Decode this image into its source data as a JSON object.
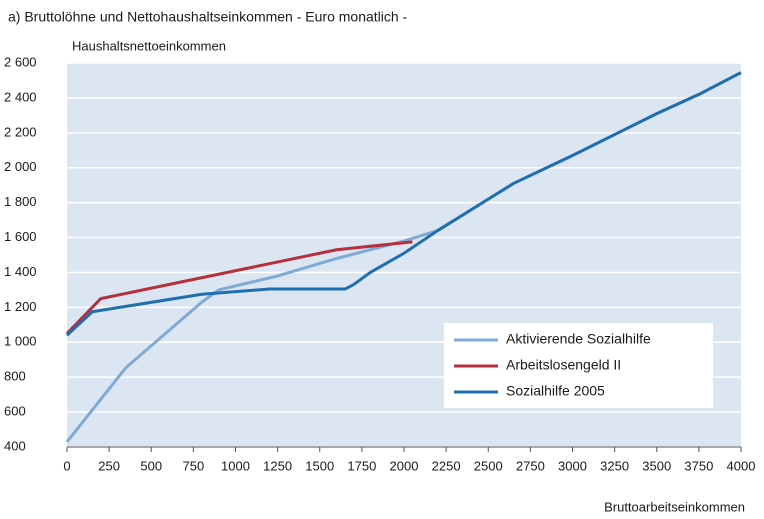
{
  "chart_data": {
    "type": "line",
    "title": "a) Bruttolöhne und Nettohaushaltseinkommen    - Euro monatlich -",
    "y_label": "Haushaltsnettoeinkommen",
    "x_label": "Bruttoarbeitseinkommen",
    "xlim": [
      0,
      4000
    ],
    "xticks": [
      0,
      250,
      500,
      750,
      1000,
      1250,
      1500,
      1750,
      2000,
      2250,
      2500,
      2750,
      3000,
      3250,
      3500,
      3750,
      4000
    ],
    "ylim": [
      400,
      2600
    ],
    "yticks": [
      400,
      600,
      800,
      {
        "value": 1000,
        "label": "1 000"
      },
      {
        "value": 1200,
        "label": "1 200"
      },
      {
        "value": 1400,
        "label": "1 400"
      },
      {
        "value": 1600,
        "label": "1 600"
      },
      {
        "value": 1800,
        "label": "1 800"
      },
      {
        "value": 2000,
        "label": "2 000"
      },
      {
        "value": 2200,
        "label": "2 200"
      },
      {
        "value": 2400,
        "label": "2 400"
      },
      {
        "value": 2600,
        "label": "2 600"
      }
    ],
    "grid": true,
    "legend": "lower right",
    "series": [
      {
        "name": "Aktivierende Sozialhilfe",
        "color": "#7eaad6",
        "x": [
          0,
          350,
          800,
          900,
          1250,
          1600,
          2000,
          2200,
          2400,
          2650,
          3000,
          3250,
          3500,
          3750,
          4000
        ],
        "values": [
          430,
          855,
          1230,
          1300,
          1380,
          1480,
          1580,
          1640,
          1760,
          1910,
          2070,
          2190,
          2310,
          2420,
          2545
        ]
      },
      {
        "name": "Arbeitslosengeld II",
        "color": "#b5303a",
        "x": [
          0,
          200,
          1600,
          2050
        ],
        "values": [
          1050,
          1250,
          1530,
          1575
        ]
      },
      {
        "name": "Sozialhilfe 2005",
        "color": "#1f6fb0",
        "x": [
          0,
          150,
          800,
          1200,
          1650,
          1700,
          1800,
          2000,
          2200,
          2400,
          2650,
          3000,
          3250,
          3500,
          3750,
          4000
        ],
        "values": [
          1040,
          1175,
          1275,
          1305,
          1305,
          1330,
          1400,
          1510,
          1640,
          1760,
          1910,
          2070,
          2190,
          2310,
          2420,
          2545
        ]
      }
    ]
  }
}
